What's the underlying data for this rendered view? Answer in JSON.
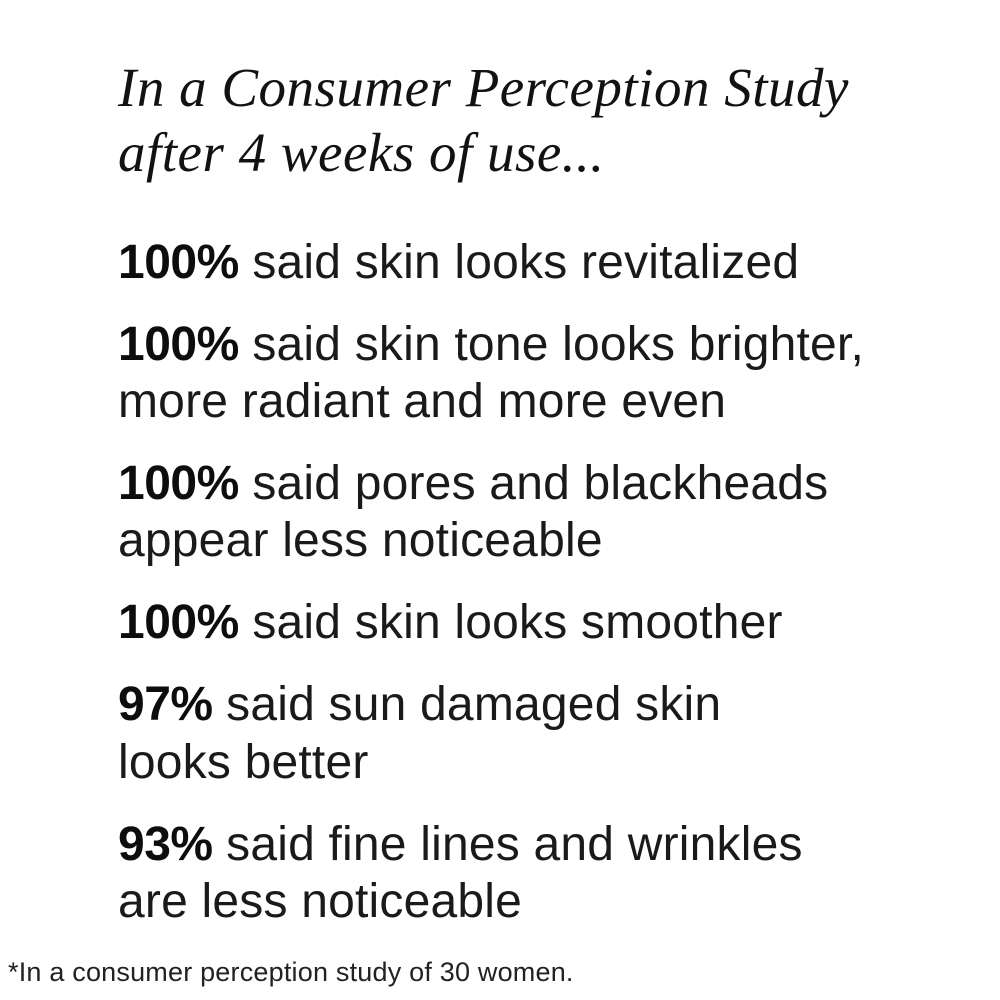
{
  "header": {
    "title": "In a Consumer Perception Study\nafter 4 weeks of use..."
  },
  "stats": [
    {
      "percent": "100%",
      "text": "said skin looks revitalized"
    },
    {
      "percent": "100%",
      "text": "said skin tone looks brighter,\nmore radiant and more even"
    },
    {
      "percent": "100%",
      "text": "said pores and blackheads\nappear less noticeable"
    },
    {
      "percent": "100%",
      "text": "said skin looks smoother"
    },
    {
      "percent": "97%",
      "text": "said sun damaged skin\nlooks better"
    },
    {
      "percent": "93%",
      "text": "said fine lines and wrinkles\nare less noticeable"
    }
  ],
  "footnote": "*In a consumer perception study of 30 women.",
  "colors": {
    "background": "#ffffff",
    "headline_text": "#121212",
    "body_text": "#1a1a1a",
    "percent_text": "#0d0d0d"
  }
}
